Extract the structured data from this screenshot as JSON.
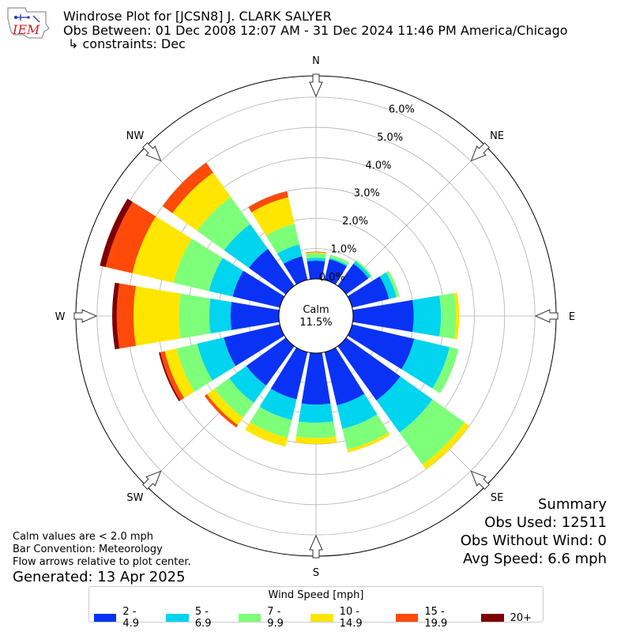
{
  "header": {
    "title": "Windrose Plot for [JCSN8] J. CLARK SALYER",
    "subtitle": "Obs Between: 01 Dec 2008 12:07 AM - 31 Dec 2024 11:46 PM America/Chicago",
    "constraints": "↳ constraints: Dec",
    "logo_text": "IEM"
  },
  "summary": {
    "title": "Summary",
    "obs_used": "Obs Used: 12511",
    "obs_without_wind": "Obs Without Wind: 0",
    "avg_speed": "Avg Speed: 6.6 mph"
  },
  "notes": {
    "calm": "Calm values are < 2.0 mph",
    "convention": "Bar Convention: Meteorology",
    "arrows": "Flow arrows relative to plot center.",
    "generated": "Generated: 13 Apr 2025"
  },
  "chart_data": {
    "type": "windrose",
    "calm_label": "Calm",
    "calm_value": "11.5%",
    "calm_percent": 11.5,
    "radial_max": 6.7,
    "radial_ticks": [
      0,
      1,
      2,
      3,
      4,
      5,
      6
    ],
    "radial_tick_labels": [
      "0.0%",
      "1.0%",
      "2.0%",
      "3.0%",
      "4.0%",
      "5.0%",
      "6.0%"
    ],
    "compass": [
      "N",
      "NE",
      "E",
      "SE",
      "S",
      "SW",
      "W",
      "NW"
    ],
    "directions": [
      "N",
      "NNE",
      "NE",
      "ENE",
      "E",
      "ESE",
      "SE",
      "SSE",
      "S",
      "SSW",
      "SW",
      "WSW",
      "W",
      "WNW",
      "NW",
      "NNW"
    ],
    "legend_title": "Wind Speed [mph]",
    "bins": [
      {
        "label": "2 - 4.9",
        "color": "#0a32f5"
      },
      {
        "label": "5 - 6.9",
        "color": "#00d4ee"
      },
      {
        "label": "7 - 9.9",
        "color": "#7dff7a"
      },
      {
        "label": "10 - 14.9",
        "color": "#ffe600"
      },
      {
        "label": "15 - 19.9",
        "color": "#ff4a0a"
      },
      {
        "label": "20+",
        "color": "#7f0000"
      }
    ],
    "cumulative": [
      [
        0.6,
        0.7,
        0.85,
        0.88,
        0.9,
        0.9
      ],
      [
        0.7,
        0.75,
        0.85,
        0.85,
        0.85,
        0.85
      ],
      [
        0.9,
        1.0,
        1.05,
        1.05,
        1.05,
        1.05
      ],
      [
        1.25,
        1.5,
        1.6,
        1.6,
        1.6,
        1.6
      ],
      [
        2.0,
        2.9,
        3.4,
        3.5,
        3.5,
        3.5
      ],
      [
        2.1,
        3.3,
        3.6,
        3.6,
        3.6,
        3.6
      ],
      [
        2.2,
        3.5,
        4.8,
        5.0,
        5.0,
        5.0
      ],
      [
        1.8,
        2.6,
        3.3,
        3.4,
        3.4,
        3.4
      ],
      [
        1.7,
        2.3,
        2.8,
        3.0,
        3.0,
        3.0
      ],
      [
        1.6,
        2.3,
        2.9,
        3.2,
        3.2,
        3.2
      ],
      [
        1.6,
        2.3,
        2.9,
        3.2,
        3.3,
        3.3
      ],
      [
        1.9,
        2.8,
        3.5,
        3.9,
        4.05,
        4.1
      ],
      [
        1.6,
        2.3,
        3.3,
        4.8,
        5.35,
        5.5
      ],
      [
        1.6,
        2.4,
        3.6,
        5.0,
        5.9,
        6.1
      ],
      [
        1.5,
        2.5,
        3.6,
        4.6,
        5.0,
        5.0
      ],
      [
        0.8,
        1.2,
        1.9,
        2.8,
        3.0,
        3.0
      ]
    ]
  }
}
